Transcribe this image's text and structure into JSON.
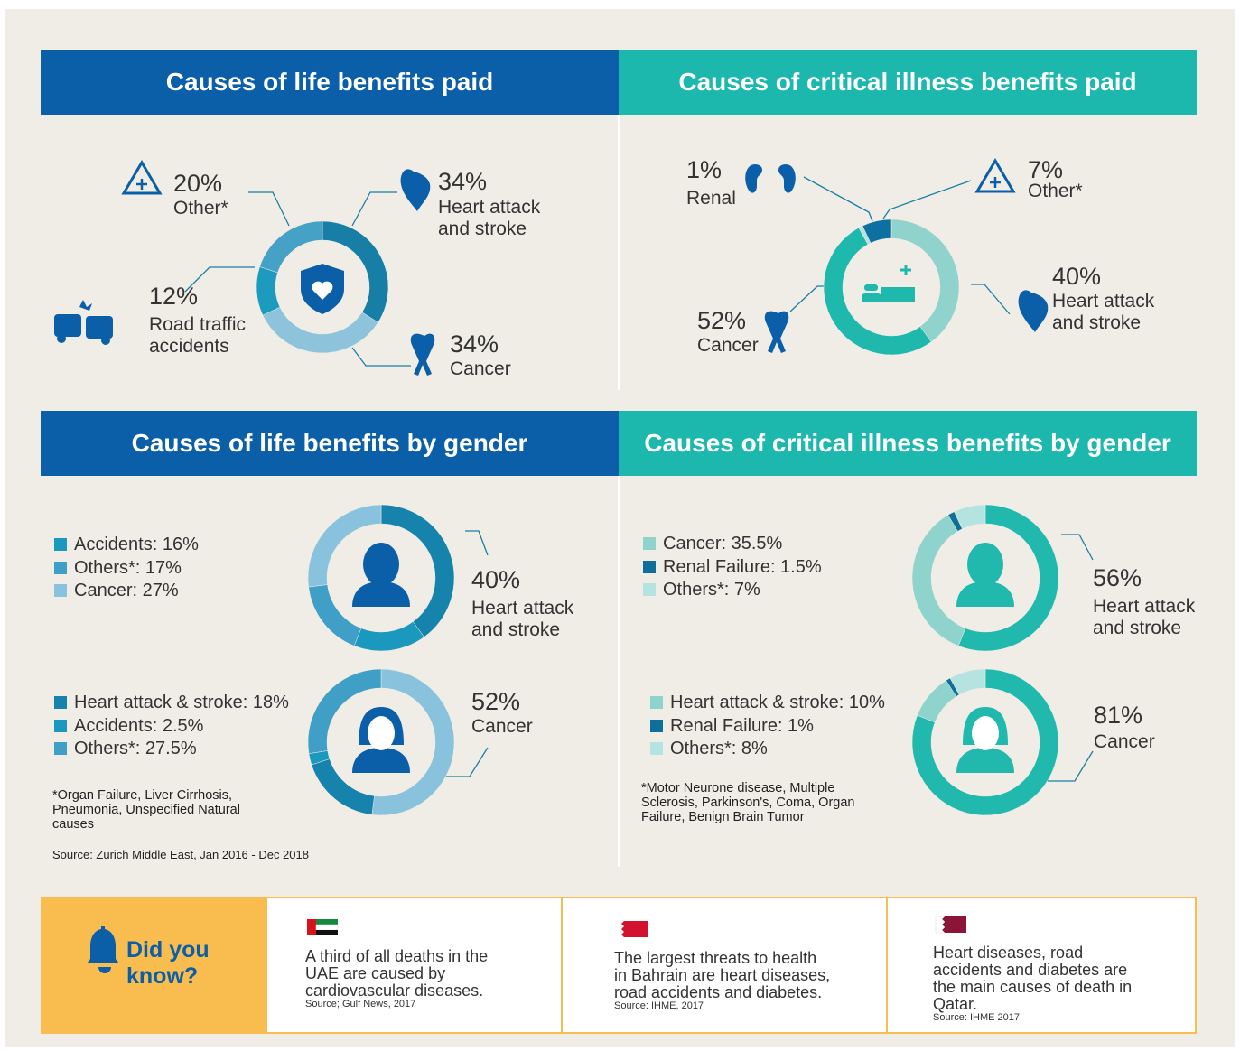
{
  "chart_data": [
    {
      "type": "donut",
      "title": "Causes of life benefits paid",
      "donuts": [
        {
          "segments": [
            {
              "name": "Heart attack and stroke",
              "value": 34,
              "value_label": "34%",
              "color": "#177fa6"
            },
            {
              "name": "Cancer",
              "value": 34,
              "value_label": "34%",
              "color": "#8dc4dc"
            },
            {
              "name": "Road traffic accidents",
              "value": 12,
              "value_label": "12%",
              "color": "#1d9bbf"
            },
            {
              "name": "Other*",
              "value": 20,
              "value_label": "20%",
              "color": "#46a1c7"
            }
          ]
        }
      ]
    },
    {
      "type": "donut",
      "title": "Causes of critical illness benefits paid",
      "donuts": [
        {
          "segments": [
            {
              "name": "Heart attack and stroke",
              "value": 40,
              "value_label": "40%",
              "color": "#8fd3cc"
            },
            {
              "name": "Cancer",
              "value": 52,
              "value_label": "52%",
              "color": "#1fb8ad"
            },
            {
              "name": "Renal",
              "value": 1,
              "value_label": "1%",
              "color": "#b5e3df"
            },
            {
              "name": "Other*",
              "value": 7,
              "value_label": "7%",
              "color": "#0e70a0"
            }
          ]
        }
      ]
    },
    {
      "type": "donut",
      "title": "Causes of life benefits by gender",
      "note": "*Organ Failure, Liver Cirrhosis, Pneumonia, Unspecified Natural causes",
      "source": "Source: Zurich Middle East, Jan 2016 - Dec 2018",
      "donuts": [
        {
          "segments": [
            {
              "name": "Heart attack and stroke",
              "value": 40,
              "value_label": "40%",
              "color": "#1583ab"
            },
            {
              "label": "Accidents: 16%",
              "value": 16,
              "color": "#1b98bd"
            },
            {
              "label": "Others*: 17%",
              "value": 17,
              "color": "#3f9fc6"
            },
            {
              "label": "Cancer: 27%",
              "value": 27,
              "color": "#89c2dc"
            }
          ]
        },
        {
          "segments": [
            {
              "name": "Cancer",
              "value": 52,
              "value_label": "52%",
              "color": "#89c2dc"
            },
            {
              "label": "Heart attack & stroke: 18%",
              "value": 18,
              "color": "#1583ab"
            },
            {
              "label": "Accidents: 2.5%",
              "value": 2.5,
              "color": "#1b98bd"
            },
            {
              "label": "Others*: 27.5%",
              "value": 27.5,
              "color": "#3f9fc6"
            }
          ]
        }
      ]
    },
    {
      "type": "donut",
      "title": "Causes of critical illness benefits by gender",
      "note": "*Motor Neurone disease, Multiple Sclerosis, Parkinson's, Coma, Organ Failure, Benign Brain Tumor",
      "donuts": [
        {
          "segments": [
            {
              "name": "Heart attack and stroke",
              "value": 56,
              "value_label": "56%",
              "color": "#21b8ae"
            },
            {
              "label": "Cancer: 35.5%",
              "value": 35.5,
              "color": "#8fd3cd"
            },
            {
              "label": "Renal Failure: 1.5%",
              "value": 1.5,
              "color": "#0e6f9b"
            },
            {
              "label": "Others*: 7%",
              "value": 7,
              "color": "#b5e3df"
            }
          ]
        },
        {
          "segments": [
            {
              "name": "Cancer",
              "value": 81,
              "value_label": "81%",
              "color": "#21b8ae"
            },
            {
              "label": "Heart attack & stroke: 10%",
              "value": 10,
              "color": "#8fd3cd"
            },
            {
              "label": "Renal Failure: 1%",
              "value": 1,
              "color": "#0e6f9b"
            },
            {
              "label": "Others*: 8%",
              "value": 8,
              "color": "#b5e3df"
            }
          ]
        }
      ]
    }
  ],
  "did_you_know": {
    "title": "Did you know?",
    "facts": [
      {
        "text": "A third of all deaths in the UAE are caused by cardiovascular diseases.",
        "source": "Source; Gulf News, 2017"
      },
      {
        "text": "The largest threats to health in Bahrain are heart diseases, road accidents and diabetes.",
        "source": "Source: IHME, 2017"
      },
      {
        "text": "Heart diseases, road accidents and diabetes are the main causes of death in Qatar.",
        "source": "Source: IHME 2017"
      }
    ]
  }
}
